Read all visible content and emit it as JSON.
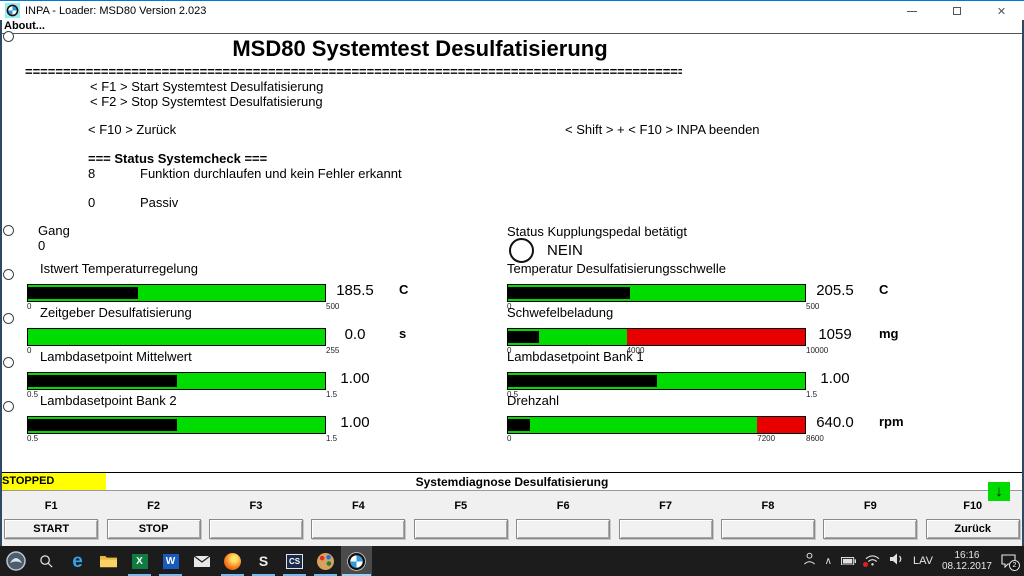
{
  "titlebar": {
    "title": "INPA - Loader:  MSD80 Version 2.023"
  },
  "menubar": {
    "about": "About..."
  },
  "header": {
    "title": "MSD80 Systemtest Desulfatisierung",
    "separator": "================================================================================================"
  },
  "hints": {
    "f1": "< F1  > Start Systemtest Desulfatisierung",
    "f2": "< F2  > Stop Systemtest Desulfatisierung",
    "f10": "< F10 > Zurück",
    "shift_f10": "< Shift > + < F10 > INPA beenden"
  },
  "systemcheck": {
    "header": "===  Status Systemcheck ===",
    "row1_code": "8",
    "row1_text": "Funktion durchlaufen und kein Fehler erkannt",
    "row2_code": "0",
    "row2_text": "Passiv"
  },
  "readouts": {
    "gang_label": "Gang",
    "gang_value": "0",
    "clutch_label": "Status Kupplungspedal betätigt",
    "clutch_value": "NEIN"
  },
  "gauges": [
    {
      "label": "Istwert Temperaturregelung",
      "value": "185.5",
      "unit": "C",
      "scale": {
        "min": "0",
        "mid": "",
        "mid_pct": 0,
        "max": "500"
      },
      "fill_pct": 37.1,
      "green_pct": 100
    },
    {
      "label": "Zeitgeber Desulfatisierung",
      "value": "0.0",
      "unit": "s",
      "scale": {
        "min": "0",
        "mid": "",
        "mid_pct": 0,
        "max": "255"
      },
      "fill_pct": 0,
      "green_pct": 100
    },
    {
      "label": "Lambdasetpoint Mittelwert",
      "value": "1.00",
      "unit": "",
      "scale": {
        "min": "0.5",
        "mid": "",
        "mid_pct": 0,
        "max": "1.5"
      },
      "fill_pct": 50,
      "green_pct": 100
    },
    {
      "label": "Lambdasetpoint Bank 2",
      "value": "1.00",
      "unit": "",
      "scale": {
        "min": "0.5",
        "mid": "",
        "mid_pct": 0,
        "max": "1.5"
      },
      "fill_pct": 50,
      "green_pct": 100
    },
    {
      "label": "Temperatur Desulfatisierungsschwelle",
      "value": "205.5",
      "unit": "C",
      "scale": {
        "min": "0",
        "mid": "",
        "mid_pct": 0,
        "max": "500"
      },
      "fill_pct": 41.1,
      "green_pct": 100
    },
    {
      "label": "Schwefelbeladung",
      "value": "1059",
      "unit": "mg",
      "scale": {
        "min": "0",
        "mid": "4000",
        "mid_pct": 40,
        "max": "10000"
      },
      "fill_pct": 10.6,
      "green_pct": 40
    },
    {
      "label": "Lambdasetpoint Bank 1",
      "value": "1.00",
      "unit": "",
      "scale": {
        "min": "0.5",
        "mid": "",
        "mid_pct": 0,
        "max": "1.5"
      },
      "fill_pct": 50,
      "green_pct": 100
    },
    {
      "label": "Drehzahl",
      "value": "640.0",
      "unit": "rpm",
      "scale": {
        "min": "0",
        "mid": "7200",
        "mid_pct": 83.7,
        "max": "8600"
      },
      "fill_pct": 7.4,
      "green_pct": 83.7
    }
  ],
  "status_strip": {
    "state": "STOPPED",
    "title": "Systemdiagnose Desulfatisierung"
  },
  "function_keys": [
    {
      "key": "F1",
      "label": "START"
    },
    {
      "key": "F2",
      "label": "STOP"
    },
    {
      "key": "F3",
      "label": ""
    },
    {
      "key": "F4",
      "label": ""
    },
    {
      "key": "F5",
      "label": ""
    },
    {
      "key": "F6",
      "label": ""
    },
    {
      "key": "F7",
      "label": ""
    },
    {
      "key": "F8",
      "label": ""
    },
    {
      "key": "F9",
      "label": ""
    },
    {
      "key": "F10",
      "label": "Zurück"
    }
  ],
  "scroll_indicator": "↓",
  "taskbar": {
    "glyphs": {
      "edge": "e",
      "excel": "X",
      "word": "W",
      "skype": "S",
      "cs": "CS"
    },
    "tray": {
      "chevron": "∧",
      "language": "LAV",
      "time": "16:16",
      "date": "08.12.2017",
      "badge": "2"
    }
  },
  "colors": {
    "green": "#00DC00",
    "red": "#E80000",
    "yellow": "#FFFF00",
    "accent_blue": "#0078D7"
  }
}
